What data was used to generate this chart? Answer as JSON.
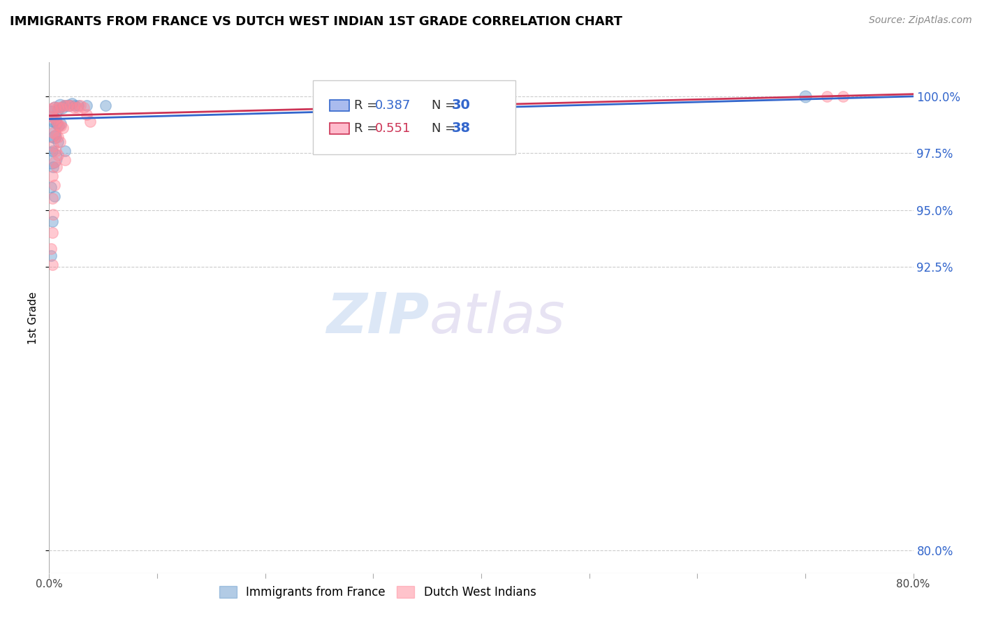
{
  "title": "IMMIGRANTS FROM FRANCE VS DUTCH WEST INDIAN 1ST GRADE CORRELATION CHART",
  "source": "Source: ZipAtlas.com",
  "ylabel": "1st Grade",
  "yticks": [
    80.0,
    92.5,
    95.0,
    97.5,
    100.0
  ],
  "ytick_labels": [
    "80.0%",
    "92.5%",
    "95.0%",
    "97.5%",
    "100.0%"
  ],
  "xlim": [
    0.0,
    80.0
  ],
  "ylim": [
    79.0,
    101.5
  ],
  "france_R": 0.387,
  "france_N": 30,
  "dwi_R": 0.551,
  "dwi_N": 38,
  "france_color": "#6699cc",
  "dwi_color": "#ff8899",
  "france_line_color": "#3366cc",
  "dwi_line_color": "#cc3355",
  "watermark_zip": "ZIP",
  "watermark_atlas": "atlas",
  "france_line": [
    0.0,
    99.0,
    80.0,
    100.0
  ],
  "dwi_line": [
    0.0,
    99.15,
    80.0,
    100.1
  ],
  "france_points": [
    [
      0.2,
      99.3,
      8
    ],
    [
      0.5,
      99.5,
      6
    ],
    [
      0.8,
      99.4,
      5
    ],
    [
      1.0,
      99.6,
      7
    ],
    [
      1.2,
      99.5,
      6
    ],
    [
      1.5,
      99.6,
      5
    ],
    [
      1.8,
      99.6,
      6
    ],
    [
      2.1,
      99.7,
      5
    ],
    [
      2.4,
      99.6,
      5
    ],
    [
      2.7,
      99.6,
      5
    ],
    [
      0.3,
      99.1,
      5
    ],
    [
      0.4,
      98.9,
      5
    ],
    [
      0.6,
      99.0,
      5
    ],
    [
      0.7,
      98.8,
      5
    ],
    [
      0.9,
      98.7,
      5
    ],
    [
      1.1,
      98.8,
      5
    ],
    [
      0.2,
      98.4,
      15
    ],
    [
      0.5,
      98.2,
      7
    ],
    [
      0.8,
      98.0,
      5
    ],
    [
      3.5,
      99.6,
      5
    ],
    [
      5.2,
      99.6,
      5
    ],
    [
      0.3,
      97.6,
      5
    ],
    [
      1.5,
      97.6,
      5
    ],
    [
      0.2,
      97.3,
      20
    ],
    [
      0.4,
      96.9,
      5
    ],
    [
      70.0,
      100.0,
      6
    ],
    [
      0.2,
      96.0,
      5
    ],
    [
      0.5,
      95.6,
      5
    ],
    [
      0.3,
      94.5,
      5
    ],
    [
      0.2,
      93.0,
      5
    ]
  ],
  "dwi_points": [
    [
      0.2,
      99.4,
      7
    ],
    [
      0.5,
      99.5,
      6
    ],
    [
      0.8,
      99.5,
      5
    ],
    [
      1.1,
      99.5,
      5
    ],
    [
      1.4,
      99.6,
      5
    ],
    [
      1.7,
      99.6,
      5
    ],
    [
      2.0,
      99.6,
      5
    ],
    [
      2.3,
      99.5,
      5
    ],
    [
      2.6,
      99.5,
      5
    ],
    [
      2.9,
      99.6,
      5
    ],
    [
      3.2,
      99.5,
      5
    ],
    [
      0.3,
      99.1,
      5
    ],
    [
      0.5,
      99.0,
      5
    ],
    [
      0.7,
      98.9,
      5
    ],
    [
      0.9,
      98.7,
      5
    ],
    [
      1.1,
      98.7,
      5
    ],
    [
      1.3,
      98.6,
      5
    ],
    [
      0.4,
      98.4,
      5
    ],
    [
      0.6,
      98.3,
      5
    ],
    [
      0.8,
      98.2,
      5
    ],
    [
      1.0,
      98.0,
      5
    ],
    [
      3.5,
      99.2,
      5
    ],
    [
      0.4,
      97.8,
      5
    ],
    [
      0.6,
      97.6,
      5
    ],
    [
      0.8,
      97.4,
      5
    ],
    [
      0.5,
      97.1,
      5
    ],
    [
      0.7,
      96.9,
      5
    ],
    [
      1.5,
      97.2,
      5
    ],
    [
      3.8,
      98.9,
      5
    ],
    [
      72.0,
      100.0,
      5
    ],
    [
      73.5,
      100.0,
      5
    ],
    [
      0.3,
      96.5,
      5
    ],
    [
      0.5,
      96.1,
      5
    ],
    [
      0.3,
      95.5,
      5
    ],
    [
      0.4,
      94.8,
      5
    ],
    [
      0.3,
      94.0,
      5
    ],
    [
      0.2,
      93.3,
      5
    ],
    [
      0.3,
      92.6,
      5
    ]
  ]
}
